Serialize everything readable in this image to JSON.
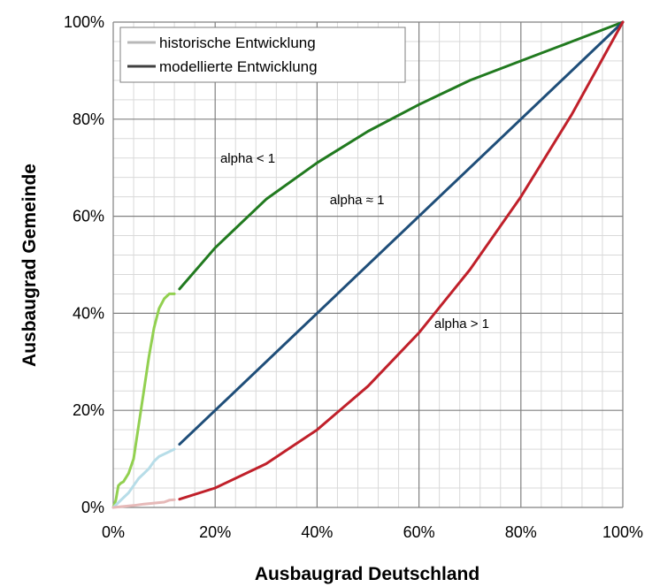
{
  "chart_data": {
    "type": "line",
    "xlabel": "Ausbaugrad Deutschland",
    "ylabel": "Ausbaugrad Gemeinde",
    "xlim": [
      0,
      100
    ],
    "ylim": [
      0,
      100
    ],
    "x_ticks": [
      "0%",
      "20%",
      "40%",
      "60%",
      "80%",
      "100%"
    ],
    "y_ticks": [
      "0%",
      "20%",
      "40%",
      "60%",
      "80%",
      "100%"
    ],
    "grid": true,
    "legend_position": "top-left",
    "legend": [
      {
        "label": "historische Entwicklung",
        "color": "#b8b8b8"
      },
      {
        "label": "modellierte Entwicklung",
        "color": "#404040"
      }
    ],
    "annotations": [
      {
        "text": "alpha < 1",
        "x": 21,
        "y": 71
      },
      {
        "text": "alpha ≈ 1",
        "x": 42.5,
        "y": 62.5
      },
      {
        "text": "alpha > 1",
        "x": 63,
        "y": 37
      }
    ],
    "series": [
      {
        "kind": "historical",
        "color": "#92d050",
        "points": [
          [
            0,
            0
          ],
          [
            0.5,
            1.5
          ],
          [
            1,
            4.5
          ],
          [
            1.5,
            5
          ],
          [
            2,
            5.3
          ],
          [
            3,
            7
          ],
          [
            4,
            10
          ],
          [
            5,
            17
          ],
          [
            6,
            24
          ],
          [
            7,
            31
          ],
          [
            8,
            37
          ],
          [
            9,
            41
          ],
          [
            10,
            43
          ],
          [
            11,
            44
          ],
          [
            12,
            44
          ]
        ]
      },
      {
        "kind": "historical",
        "color": "#b7dde8",
        "points": [
          [
            0,
            0
          ],
          [
            1,
            1
          ],
          [
            2,
            2
          ],
          [
            3,
            3
          ],
          [
            4,
            4.5
          ],
          [
            5,
            6
          ],
          [
            6,
            7
          ],
          [
            7,
            8
          ],
          [
            8,
            9.5
          ],
          [
            9,
            10.5
          ],
          [
            10,
            11
          ],
          [
            11,
            11.5
          ],
          [
            12,
            12
          ]
        ]
      },
      {
        "kind": "historical",
        "color": "#e6b9b8",
        "points": [
          [
            0,
            0
          ],
          [
            2,
            0.2
          ],
          [
            4,
            0.4
          ],
          [
            6,
            0.7
          ],
          [
            8,
            0.9
          ],
          [
            10,
            1.1
          ],
          [
            11,
            1.5
          ],
          [
            12,
            1.6
          ]
        ]
      },
      {
        "kind": "modelled",
        "color": "#217a1f",
        "points": [
          [
            13,
            45
          ],
          [
            20,
            53.5
          ],
          [
            30,
            63.5
          ],
          [
            40,
            71
          ],
          [
            50,
            77.5
          ],
          [
            60,
            83
          ],
          [
            70,
            88
          ],
          [
            80,
            92
          ],
          [
            90,
            96
          ],
          [
            100,
            100
          ]
        ]
      },
      {
        "kind": "modelled",
        "color": "#1f4e79",
        "points": [
          [
            13,
            13
          ],
          [
            100,
            100
          ]
        ]
      },
      {
        "kind": "modelled",
        "color": "#c0202a",
        "points": [
          [
            13,
            1.7
          ],
          [
            20,
            4
          ],
          [
            30,
            9
          ],
          [
            40,
            16
          ],
          [
            50,
            25
          ],
          [
            60,
            36
          ],
          [
            70,
            49
          ],
          [
            80,
            64
          ],
          [
            90,
            81
          ],
          [
            100,
            100
          ]
        ]
      }
    ]
  }
}
